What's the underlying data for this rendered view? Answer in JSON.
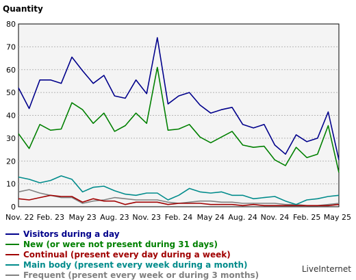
{
  "chart_data": {
    "type": "line",
    "ylabel": "Quantity",
    "ylim": [
      0,
      80
    ],
    "yticks": [
      0,
      10,
      20,
      30,
      40,
      50,
      60,
      70,
      80
    ],
    "x_tick_labels": [
      "Nov. 22",
      "Feb. 23",
      "May 23",
      "Aug. 23",
      "Nov. 23",
      "Feb. 24",
      "May 24",
      "Aug. 24",
      "Nov. 24",
      "Feb. 25",
      "May 25"
    ],
    "grid": true,
    "legend_position": "bottom",
    "series": [
      {
        "name": "Visitors during a day",
        "color": "#00008b",
        "values": [
          52,
          43,
          55.5,
          55.5,
          54,
          65.5,
          59.5,
          54,
          57.5,
          48.5,
          47.5,
          55.5,
          49.5,
          74,
          45,
          48.5,
          50,
          44.5,
          41,
          42.5,
          43.5,
          36,
          34.5,
          36,
          27,
          23,
          31.5,
          28.5,
          30,
          41.5,
          20.5
        ]
      },
      {
        "name": "New (or were not present during 31 days)",
        "color": "#008000",
        "values": [
          32,
          25.5,
          36,
          33.5,
          34,
          45.5,
          42.5,
          36.5,
          41,
          33,
          35.5,
          41,
          36.5,
          61,
          33.5,
          34,
          36,
          30.5,
          28,
          30.5,
          33,
          27,
          26,
          26.5,
          20.5,
          18,
          26,
          21.5,
          23,
          35.5,
          15
        ]
      },
      {
        "name": "Continual (present every day during a week)",
        "color": "#a00000",
        "values": [
          3.5,
          3,
          4,
          5,
          4.5,
          4.5,
          2,
          3.5,
          2.5,
          2.5,
          1,
          2,
          2,
          2,
          1,
          1.5,
          1.5,
          1.5,
          1,
          1,
          1,
          0.5,
          1,
          0.5,
          0.5,
          0.5,
          0.5,
          0.5,
          0.5,
          0.5,
          1
        ]
      },
      {
        "name": "Main body (present every week during a month)",
        "color": "#008b8b",
        "values": [
          13,
          12,
          10.5,
          11.5,
          13.5,
          12,
          6.5,
          8.5,
          9,
          7,
          5.5,
          5,
          6,
          6,
          3,
          5,
          8,
          6.5,
          6,
          6.5,
          5,
          5,
          3.5,
          4,
          4.5,
          2.5,
          1,
          3,
          3.5,
          4.5,
          5
        ]
      },
      {
        "name": "Frequent (present every week or during 3 months)",
        "color": "#808080",
        "values": [
          6.5,
          7.5,
          6,
          5,
          4,
          4,
          1.5,
          2.5,
          3,
          4,
          3.5,
          3,
          3,
          3,
          2,
          1.5,
          2,
          2.5,
          2.5,
          2,
          2,
          1.5,
          1.5,
          1.5,
          1.5,
          1,
          1,
          0.5,
          0.5,
          1,
          1.5
        ]
      }
    ]
  },
  "brand": "LiveInternet"
}
